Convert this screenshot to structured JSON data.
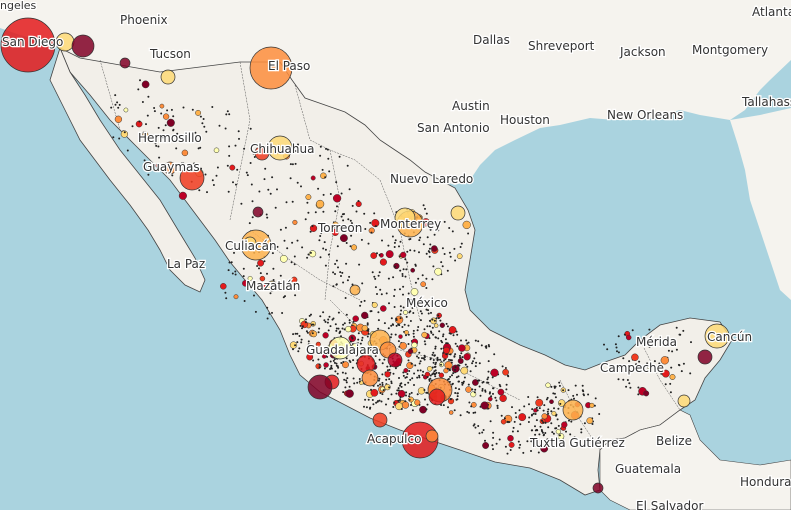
{
  "colors": {
    "water": "#aad3df",
    "land_mx": "#f2efe9",
    "land_other": "#f5f3ee",
    "border": "#333333",
    "label": "#333333"
  },
  "cities": [
    {
      "id": "angeles",
      "text": "ngeles"
    },
    {
      "id": "phoenix",
      "text": "Phoenix"
    },
    {
      "id": "atlanta",
      "text": "Atlanta"
    },
    {
      "id": "dallas",
      "text": "Dallas"
    },
    {
      "id": "shreveport",
      "text": "Shreveport"
    },
    {
      "id": "jackson",
      "text": "Jackson"
    },
    {
      "id": "montgomery",
      "text": "Montgomery"
    },
    {
      "id": "san-diego",
      "text": "San Diego"
    },
    {
      "id": "tucson",
      "text": "Tucson"
    },
    {
      "id": "el-paso",
      "text": "El Paso"
    },
    {
      "id": "tallahassee",
      "text": "Tallahass"
    },
    {
      "id": "austin",
      "text": "Austin"
    },
    {
      "id": "houston",
      "text": "Houston"
    },
    {
      "id": "new-orleans",
      "text": "New Orleans"
    },
    {
      "id": "san-antonio",
      "text": "San Antonio"
    },
    {
      "id": "hermosillo",
      "text": "Hermosillo"
    },
    {
      "id": "chihuahua",
      "text": "Chihuahua"
    },
    {
      "id": "guaymas",
      "text": "Guaymas"
    },
    {
      "id": "nuevo-laredo",
      "text": "Nuevo Laredo"
    },
    {
      "id": "torreon",
      "text": "Torreon"
    },
    {
      "id": "monterrey",
      "text": "Monterrey"
    },
    {
      "id": "culiacan",
      "text": "Culiacán"
    },
    {
      "id": "la-paz",
      "text": "La Paz"
    },
    {
      "id": "mazatlan",
      "text": "Mazatlán"
    },
    {
      "id": "mexico",
      "text": "México"
    },
    {
      "id": "guadalajara",
      "text": "Guadalajara"
    },
    {
      "id": "merida",
      "text": "Mérida"
    },
    {
      "id": "cancun",
      "text": "Cancún"
    },
    {
      "id": "campeche",
      "text": "Campeche"
    },
    {
      "id": "acapulco",
      "text": "Acapulco"
    },
    {
      "id": "tuxtla",
      "text": "Tuxtla Gutiérrez"
    },
    {
      "id": "belize",
      "text": "Belize"
    },
    {
      "id": "guatemala",
      "text": "Guatemala"
    },
    {
      "id": "honduras",
      "text": "Hondura"
    },
    {
      "id": "el-salvador",
      "text": "El Salvador"
    }
  ],
  "markers": {
    "legend_note": "",
    "palette": [
      "#ffffb2",
      "#fed976",
      "#feb24c",
      "#fd8d3c",
      "#f03b20",
      "#e31a1c",
      "#bd0026",
      "#800026"
    ]
  }
}
